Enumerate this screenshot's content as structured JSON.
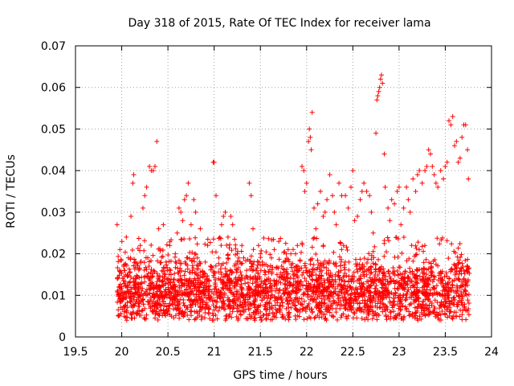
{
  "chart_data": {
    "type": "scatter",
    "title": "Day 318 of 2015, Rate Of TEC Index for receiver lama",
    "xlabel": "GPS time / hours",
    "ylabel": "ROTI / TECUs",
    "xlim": [
      19.5,
      24
    ],
    "ylim": [
      0,
      0.07
    ],
    "xticks": [
      19.5,
      20,
      20.5,
      21,
      21.5,
      22,
      22.5,
      23,
      23.5,
      24
    ],
    "yticks": [
      0,
      0.01,
      0.02,
      0.03,
      0.04,
      0.05,
      0.06,
      0.07
    ],
    "xtick_labels": [
      "19.5",
      "20",
      "20.5",
      "21",
      "21.5",
      "22",
      "22.5",
      "23",
      "23.5",
      "24"
    ],
    "ytick_labels": [
      "0",
      "0.01",
      "0.02",
      "0.03",
      "0.04",
      "0.05",
      "0.06",
      "0.07"
    ],
    "grid": true,
    "marker": "+",
    "color": "#ff0000",
    "series": [
      {
        "name": "ROTI",
        "points": [
          [
            19.95,
            0.027
          ],
          [
            19.97,
            0.012
          ],
          [
            19.98,
            0.021
          ],
          [
            20.0,
            0.009
          ],
          [
            20.02,
            0.017
          ],
          [
            20.05,
            0.024
          ],
          [
            20.08,
            0.013
          ],
          [
            20.1,
            0.029
          ],
          [
            20.12,
            0.037
          ],
          [
            20.13,
            0.039
          ],
          [
            20.15,
            0.018
          ],
          [
            20.17,
            0.011
          ],
          [
            20.2,
            0.022
          ],
          [
            20.23,
            0.031
          ],
          [
            20.25,
            0.034
          ],
          [
            20.27,
            0.036
          ],
          [
            20.3,
            0.041
          ],
          [
            20.32,
            0.04
          ],
          [
            20.34,
            0.04
          ],
          [
            20.36,
            0.041
          ],
          [
            20.38,
            0.047
          ],
          [
            20.4,
            0.026
          ],
          [
            20.42,
            0.012
          ],
          [
            20.45,
            0.027
          ],
          [
            20.48,
            0.018
          ],
          [
            20.5,
            0.014
          ],
          [
            20.52,
            0.022
          ],
          [
            20.55,
            0.009
          ],
          [
            20.58,
            0.02
          ],
          [
            20.6,
            0.025
          ],
          [
            20.62,
            0.031
          ],
          [
            20.64,
            0.03
          ],
          [
            20.66,
            0.028
          ],
          [
            20.68,
            0.033
          ],
          [
            20.7,
            0.034
          ],
          [
            20.72,
            0.037
          ],
          [
            20.75,
            0.027
          ],
          [
            20.78,
            0.033
          ],
          [
            20.8,
            0.03
          ],
          [
            20.82,
            0.019
          ],
          [
            20.85,
            0.026
          ],
          [
            20.88,
            0.015
          ],
          [
            20.9,
            0.011
          ],
          [
            20.93,
            0.022
          ],
          [
            20.96,
            0.017
          ],
          [
            20.99,
            0.042
          ],
          [
            21.0,
            0.042
          ],
          [
            21.02,
            0.034
          ],
          [
            21.05,
            0.019
          ],
          [
            21.08,
            0.027
          ],
          [
            21.1,
            0.029
          ],
          [
            21.12,
            0.03
          ],
          [
            21.15,
            0.024
          ],
          [
            21.18,
            0.029
          ],
          [
            21.2,
            0.027
          ],
          [
            21.22,
            0.013
          ],
          [
            21.25,
            0.02
          ],
          [
            21.28,
            0.018
          ],
          [
            21.3,
            0.022
          ],
          [
            21.32,
            0.019
          ],
          [
            21.35,
            0.016
          ],
          [
            21.38,
            0.037
          ],
          [
            21.4,
            0.034
          ],
          [
            21.42,
            0.026
          ],
          [
            21.45,
            0.012
          ],
          [
            21.48,
            0.022
          ],
          [
            21.5,
            0.02
          ],
          [
            21.52,
            0.018
          ],
          [
            21.55,
            0.015
          ],
          [
            21.58,
            0.017
          ],
          [
            21.6,
            0.012
          ],
          [
            21.62,
            0.019
          ],
          [
            21.65,
            0.021
          ],
          [
            21.68,
            0.015
          ],
          [
            21.7,
            0.023
          ],
          [
            21.72,
            0.013
          ],
          [
            21.75,
            0.018
          ],
          [
            21.78,
            0.02
          ],
          [
            21.8,
            0.021
          ],
          [
            21.83,
            0.02
          ],
          [
            21.86,
            0.014
          ],
          [
            21.88,
            0.02
          ],
          [
            21.9,
            0.022
          ],
          [
            21.92,
            0.016
          ],
          [
            21.95,
            0.041
          ],
          [
            21.97,
            0.04
          ],
          [
            21.98,
            0.035
          ],
          [
            22.0,
            0.037
          ],
          [
            22.02,
            0.047
          ],
          [
            22.03,
            0.05
          ],
          [
            22.04,
            0.048
          ],
          [
            22.05,
            0.045
          ],
          [
            22.06,
            0.054
          ],
          [
            22.08,
            0.031
          ],
          [
            22.1,
            0.026
          ],
          [
            22.12,
            0.032
          ],
          [
            22.15,
            0.035
          ],
          [
            22.18,
            0.029
          ],
          [
            22.2,
            0.03
          ],
          [
            22.22,
            0.033
          ],
          [
            22.25,
            0.039
          ],
          [
            22.28,
            0.034
          ],
          [
            22.3,
            0.03
          ],
          [
            22.32,
            0.027
          ],
          [
            22.35,
            0.037
          ],
          [
            22.38,
            0.034
          ],
          [
            22.4,
            0.022
          ],
          [
            22.42,
            0.034
          ],
          [
            22.45,
            0.031
          ],
          [
            22.48,
            0.036
          ],
          [
            22.5,
            0.04
          ],
          [
            22.52,
            0.028
          ],
          [
            22.55,
            0.029
          ],
          [
            22.58,
            0.033
          ],
          [
            22.6,
            0.035
          ],
          [
            22.62,
            0.037
          ],
          [
            22.65,
            0.035
          ],
          [
            22.68,
            0.034
          ],
          [
            22.7,
            0.03
          ],
          [
            22.72,
            0.025
          ],
          [
            22.75,
            0.049
          ],
          [
            22.76,
            0.057
          ],
          [
            22.77,
            0.058
          ],
          [
            22.78,
            0.059
          ],
          [
            22.79,
            0.06
          ],
          [
            22.8,
            0.062
          ],
          [
            22.81,
            0.063
          ],
          [
            22.82,
            0.061
          ],
          [
            22.84,
            0.044
          ],
          [
            22.85,
            0.036
          ],
          [
            22.88,
            0.031
          ],
          [
            22.9,
            0.028
          ],
          [
            22.92,
            0.033
          ],
          [
            22.95,
            0.032
          ],
          [
            22.98,
            0.035
          ],
          [
            23.0,
            0.036
          ],
          [
            23.02,
            0.027
          ],
          [
            23.05,
            0.031
          ],
          [
            23.08,
            0.036
          ],
          [
            23.1,
            0.033
          ],
          [
            23.12,
            0.03
          ],
          [
            23.15,
            0.038
          ],
          [
            23.18,
            0.035
          ],
          [
            23.2,
            0.039
          ],
          [
            23.22,
            0.04
          ],
          [
            23.25,
            0.037
          ],
          [
            23.28,
            0.04
          ],
          [
            23.3,
            0.041
          ],
          [
            23.32,
            0.045
          ],
          [
            23.34,
            0.044
          ],
          [
            23.36,
            0.041
          ],
          [
            23.38,
            0.039
          ],
          [
            23.4,
            0.037
          ],
          [
            23.42,
            0.036
          ],
          [
            23.45,
            0.04
          ],
          [
            23.48,
            0.038
          ],
          [
            23.5,
            0.041
          ],
          [
            23.52,
            0.042
          ],
          [
            23.54,
            0.052
          ],
          [
            23.56,
            0.051
          ],
          [
            23.58,
            0.053
          ],
          [
            23.6,
            0.046
          ],
          [
            23.62,
            0.047
          ],
          [
            23.64,
            0.042
          ],
          [
            23.66,
            0.043
          ],
          [
            23.68,
            0.048
          ],
          [
            23.7,
            0.051
          ],
          [
            23.72,
            0.051
          ],
          [
            23.74,
            0.045
          ],
          [
            23.75,
            0.038
          ]
        ],
        "density_band": {
          "x_range": [
            19.95,
            23.76
          ],
          "y_band": [
            0.004,
            0.024
          ],
          "count": 2800
        }
      }
    ]
  }
}
